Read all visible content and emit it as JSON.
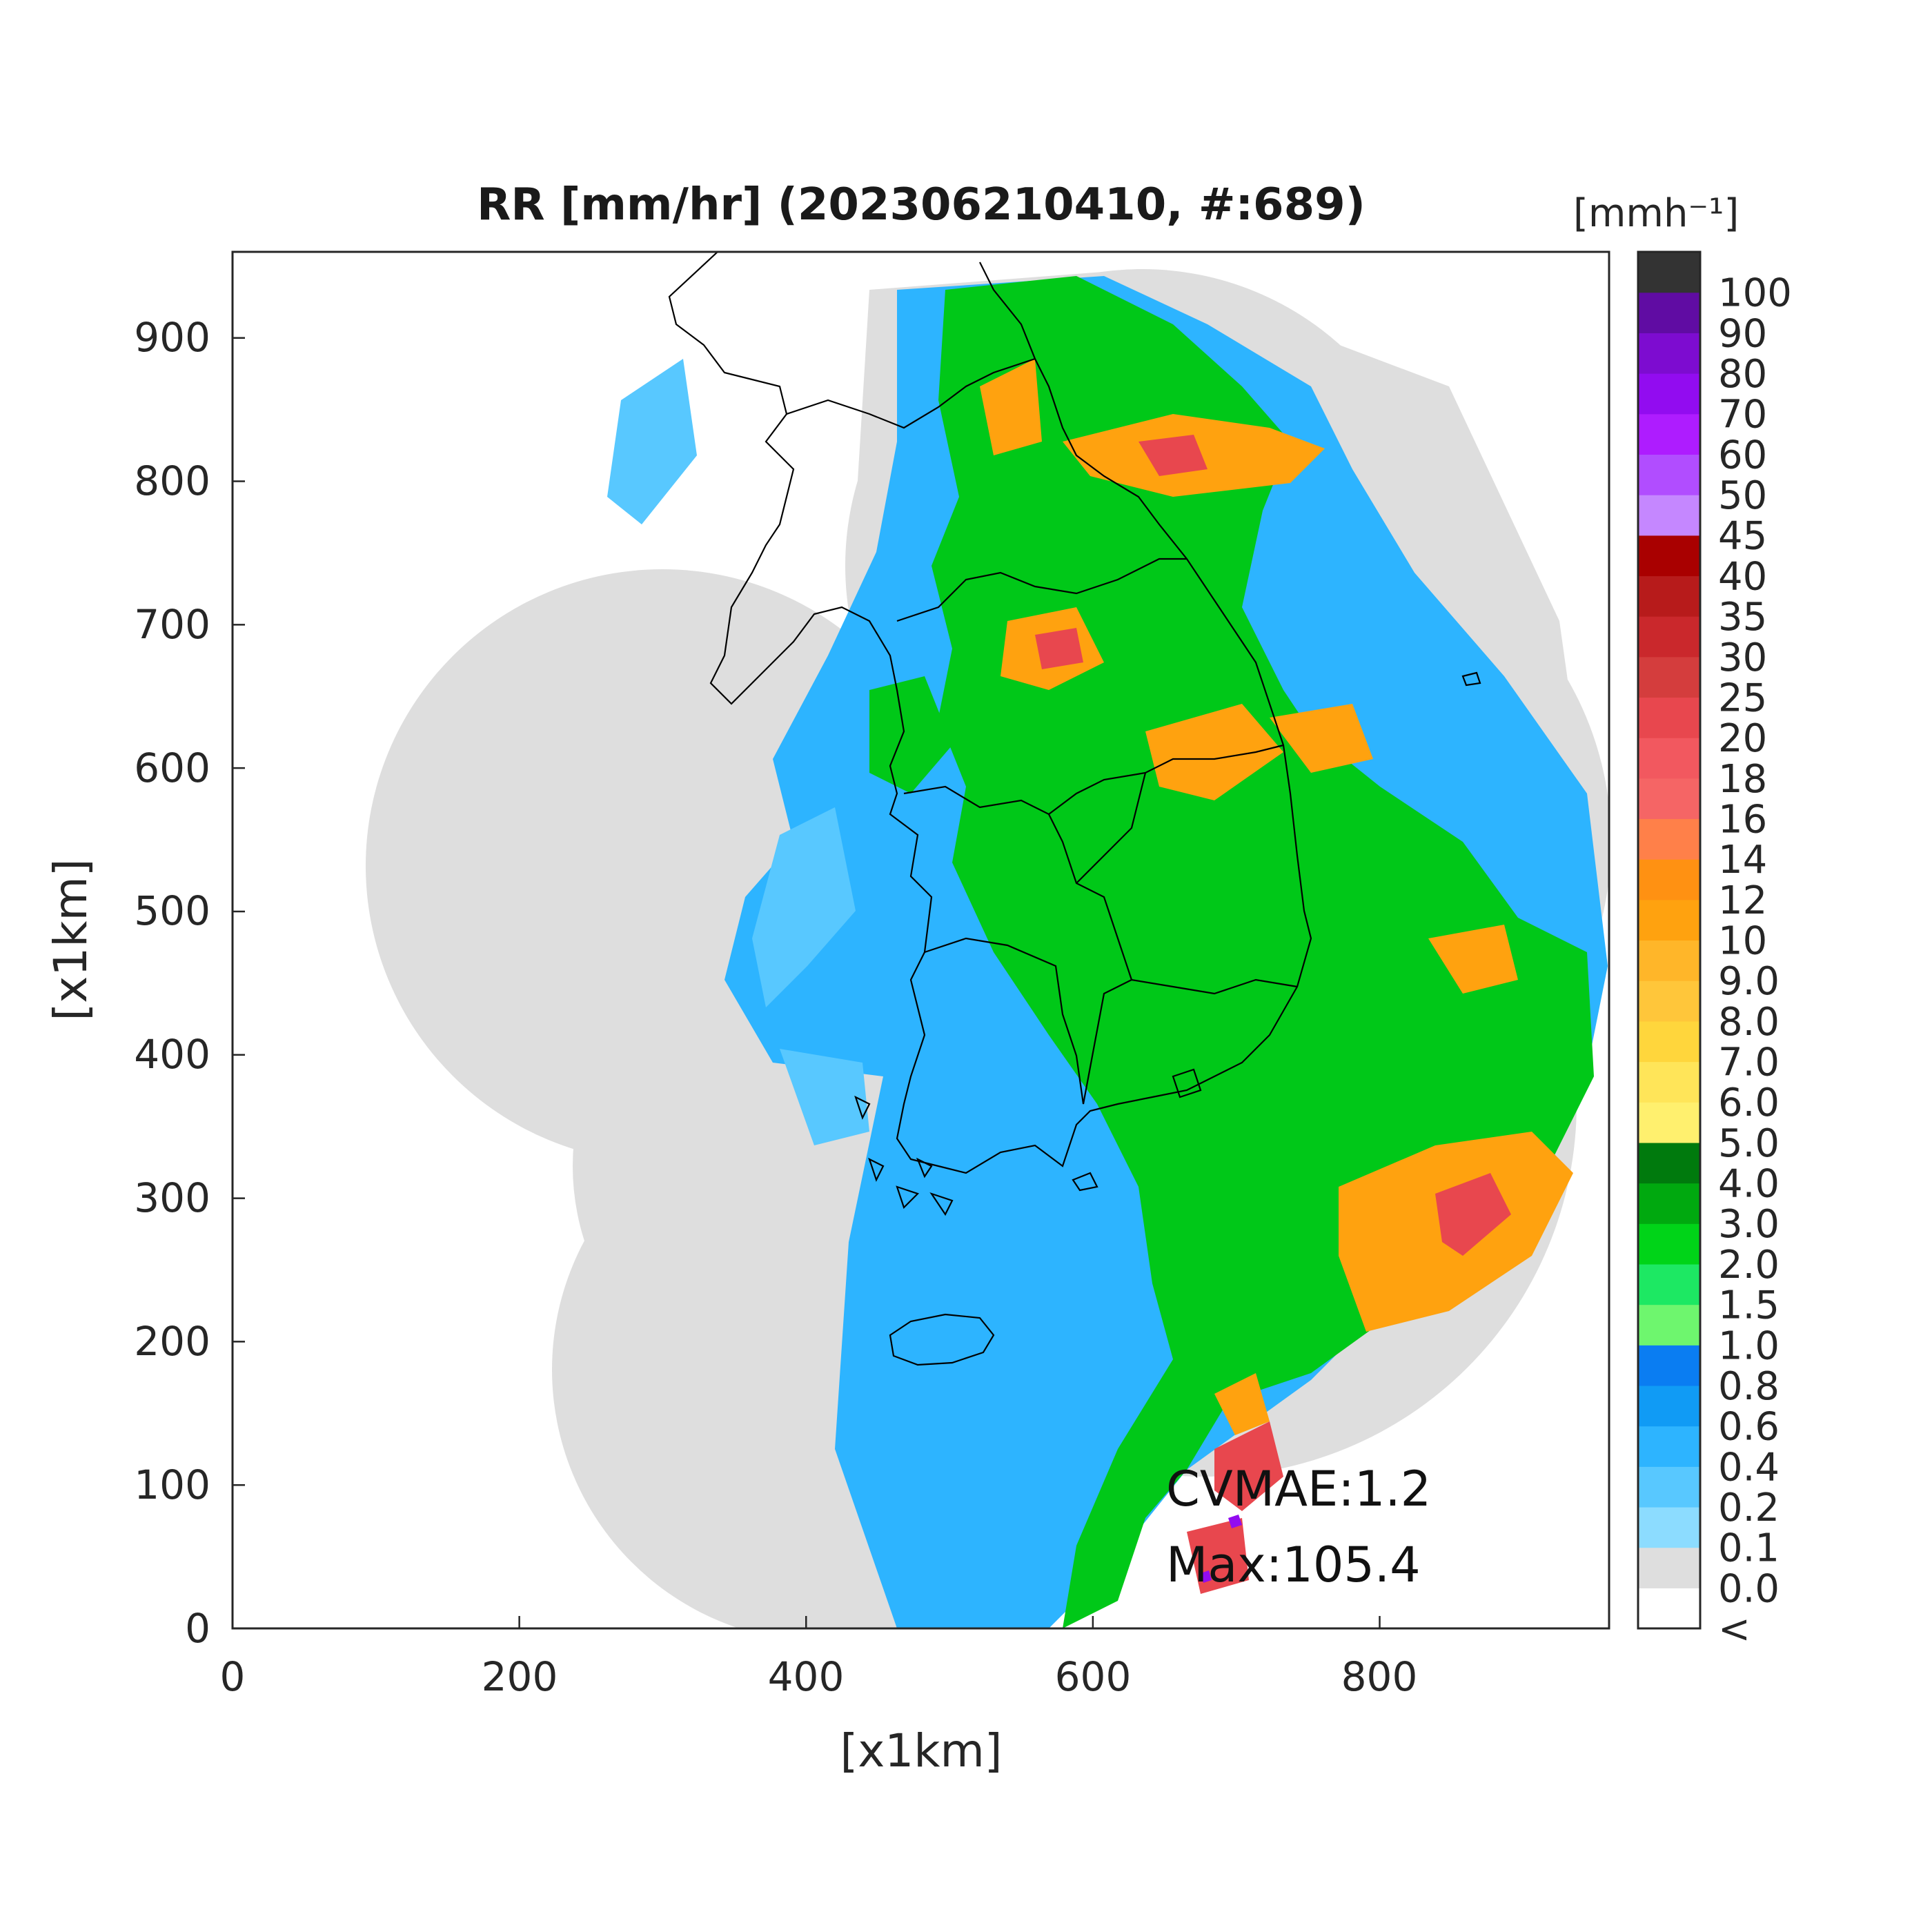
{
  "map": {
    "title": "RR [mm/hr] (202306210410, #:689)",
    "xlabel": "[x1km]",
    "ylabel": "[x1km]",
    "x_ticks": [
      "0",
      "200",
      "400",
      "600",
      "800"
    ],
    "y_ticks": [
      "0",
      "100",
      "200",
      "300",
      "400",
      "500",
      "600",
      "700",
      "800",
      "900"
    ],
    "xlim": [
      0,
      960
    ],
    "ylim": [
      0,
      960
    ],
    "annotations": {
      "cvmae": "CVMAE:1.2",
      "max": "Max:105.4"
    },
    "domain_colors": {
      "no_data": "#ffffff",
      "radar_coverage": "#dedede",
      "coastline": "#000000"
    }
  },
  "colorbar": {
    "unit_label": "[mmh⁻¹]",
    "levels": [
      "<",
      "0.0",
      "0.1",
      "0.2",
      "0.4",
      "0.6",
      "0.8",
      "1.0",
      "1.5",
      "2.0",
      "3.0",
      "4.0",
      "5.0",
      "6.0",
      "7.0",
      "8.0",
      "9.0",
      "10",
      "12",
      "14",
      "16",
      "18",
      "20",
      "25",
      "30",
      "35",
      "40",
      "45",
      "50",
      "60",
      "70",
      "80",
      "90",
      "100"
    ],
    "colors": [
      "#ffffff",
      "#dedede",
      "#8cdcff",
      "#58c8ff",
      "#2db4ff",
      "#109bf5",
      "#0a7df2",
      "#6ef66e",
      "#1de863",
      "#00d418",
      "#00a90f",
      "#007a0d",
      "#fff06e",
      "#ffe559",
      "#ffd63c",
      "#ffc63a",
      "#ffb629",
      "#ffa20f",
      "#ff9112",
      "#ff8049",
      "#f56565",
      "#f2585f",
      "#e8474e",
      "#d43d3d",
      "#ca282c",
      "#b71b1b",
      "#a90000",
      "#c587ff",
      "#b14dff",
      "#ae1cff",
      "#920cf0",
      "#7d0cd0",
      "#600ca3",
      "#333333"
    ]
  }
}
